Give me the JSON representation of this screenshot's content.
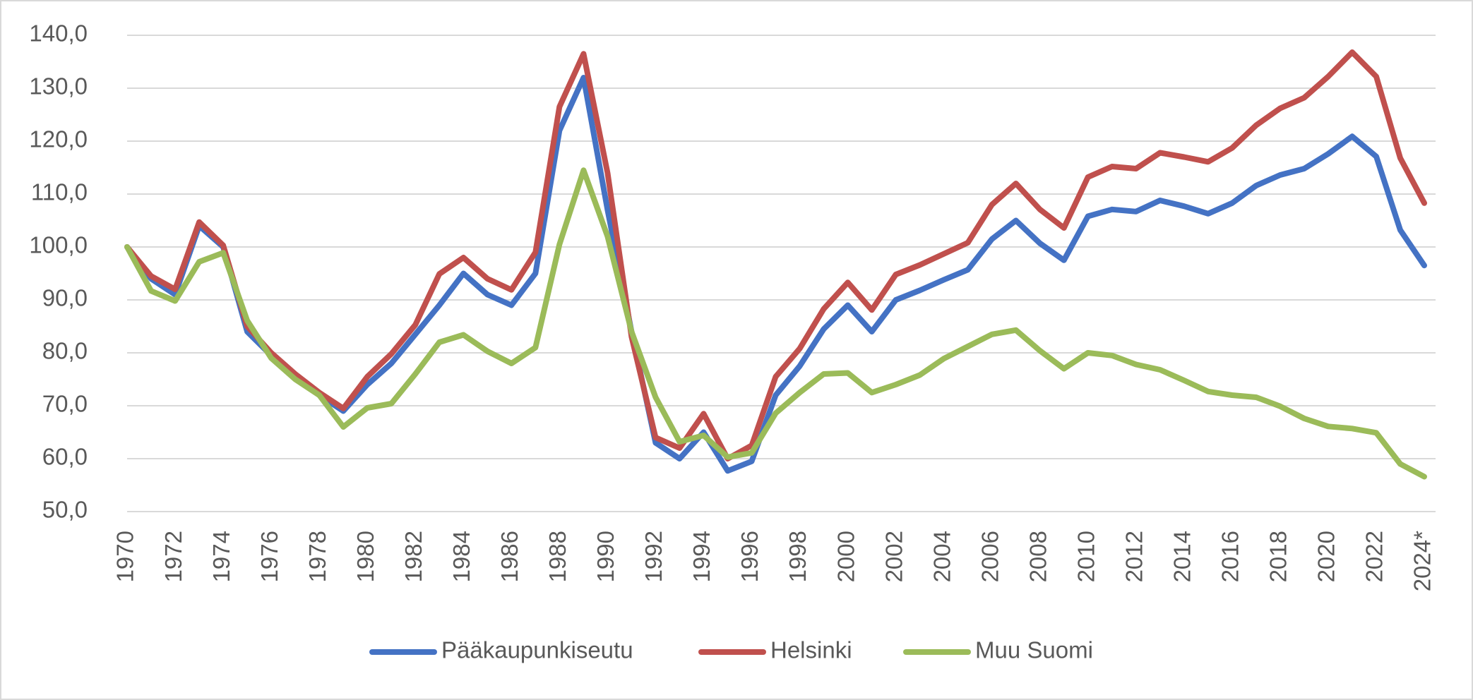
{
  "chart_data": {
    "type": "line",
    "title": "",
    "xlabel": "",
    "ylabel": "",
    "x": [
      "1970",
      "1971",
      "1972",
      "1973",
      "1974",
      "1975",
      "1976",
      "1977",
      "1978",
      "1979",
      "1980",
      "1981",
      "1982",
      "1983",
      "1984",
      "1985",
      "1986",
      "1987",
      "1988",
      "1989",
      "1990",
      "1991",
      "1992",
      "1993",
      "1994",
      "1995",
      "1996",
      "1997",
      "1998",
      "1999",
      "2000",
      "2001",
      "2002",
      "2003",
      "2004",
      "2005",
      "2006",
      "2007",
      "2008",
      "2009",
      "2010",
      "2011",
      "2012",
      "2013",
      "2014",
      "2015",
      "2016",
      "2017",
      "2018",
      "2019",
      "2020",
      "2021",
      "2022",
      "2023",
      "2024*"
    ],
    "x_tick_labels": [
      "1970",
      "1972",
      "1974",
      "1976",
      "1978",
      "1980",
      "1982",
      "1984",
      "1986",
      "1988",
      "1990",
      "1992",
      "1994",
      "1996",
      "1998",
      "2000",
      "2002",
      "2004",
      "2006",
      "2008",
      "2010",
      "2012",
      "2014",
      "2016",
      "2018",
      "2020",
      "2022",
      "2024*"
    ],
    "y_ticks": [
      "50,0",
      "60,0",
      "70,0",
      "80,0",
      "90,0",
      "100,0",
      "110,0",
      "120,0",
      "130,0",
      "140,0"
    ],
    "ylim": [
      50,
      140
    ],
    "grid": true,
    "legend_position": "bottom",
    "series": [
      {
        "name": "Pääkaupunkiseutu",
        "color": "#4472c4",
        "values": [
          100.0,
          94.0,
          91.0,
          104.0,
          100.0,
          84.0,
          79.5,
          75.5,
          72.0,
          69.0,
          74.0,
          78.0,
          83.5,
          89.0,
          95.0,
          91.0,
          89.0,
          95.0,
          122.0,
          132.0,
          107.0,
          84.0,
          63.0,
          60.0,
          65.0,
          57.7,
          59.5,
          72.0,
          77.5,
          84.5,
          89.0,
          84.0,
          90.0,
          91.8,
          93.8,
          95.7,
          101.5,
          105.0,
          100.7,
          97.5,
          105.8,
          107.1,
          106.7,
          108.8,
          107.7,
          106.3,
          108.3,
          111.6,
          113.6,
          114.8,
          117.6,
          120.9,
          117.1,
          103.2,
          96.5
        ]
      },
      {
        "name": "Helsinki",
        "color": "#c0504d",
        "values": [
          100.0,
          94.5,
          92.0,
          104.7,
          100.3,
          85.0,
          80.0,
          76.0,
          72.5,
          69.5,
          75.5,
          79.8,
          85.3,
          94.9,
          98.0,
          94.0,
          91.9,
          99.0,
          126.5,
          136.5,
          114.0,
          83.0,
          64.0,
          62.0,
          68.5,
          60.0,
          62.5,
          75.5,
          80.8,
          88.3,
          93.3,
          88.1,
          94.8,
          96.6,
          98.7,
          100.8,
          108.0,
          112.0,
          107.1,
          103.6,
          113.2,
          115.2,
          114.8,
          117.8,
          117.0,
          116.1,
          118.7,
          123.0,
          126.2,
          128.2,
          132.2,
          136.8,
          132.2,
          116.8,
          108.3
        ]
      },
      {
        "name": "Muu Suomi",
        "color": "#9bbb59",
        "values": [
          100.0,
          91.7,
          89.8,
          97.2,
          98.9,
          86.1,
          79.0,
          75.0,
          72.0,
          66.0,
          69.6,
          70.4,
          76.0,
          82.0,
          83.4,
          80.3,
          78.0,
          81.0,
          100.5,
          114.5,
          102.0,
          84.0,
          71.6,
          63.2,
          64.4,
          60.3,
          61.1,
          68.6,
          72.5,
          76.0,
          76.2,
          72.5,
          74.0,
          75.8,
          78.9,
          81.2,
          83.5,
          84.3,
          80.4,
          77.0,
          80.0,
          79.5,
          77.8,
          76.8,
          74.8,
          72.7,
          72.0,
          71.6,
          69.9,
          67.6,
          66.1,
          65.7,
          64.9,
          59.0,
          56.6
        ]
      }
    ]
  }
}
